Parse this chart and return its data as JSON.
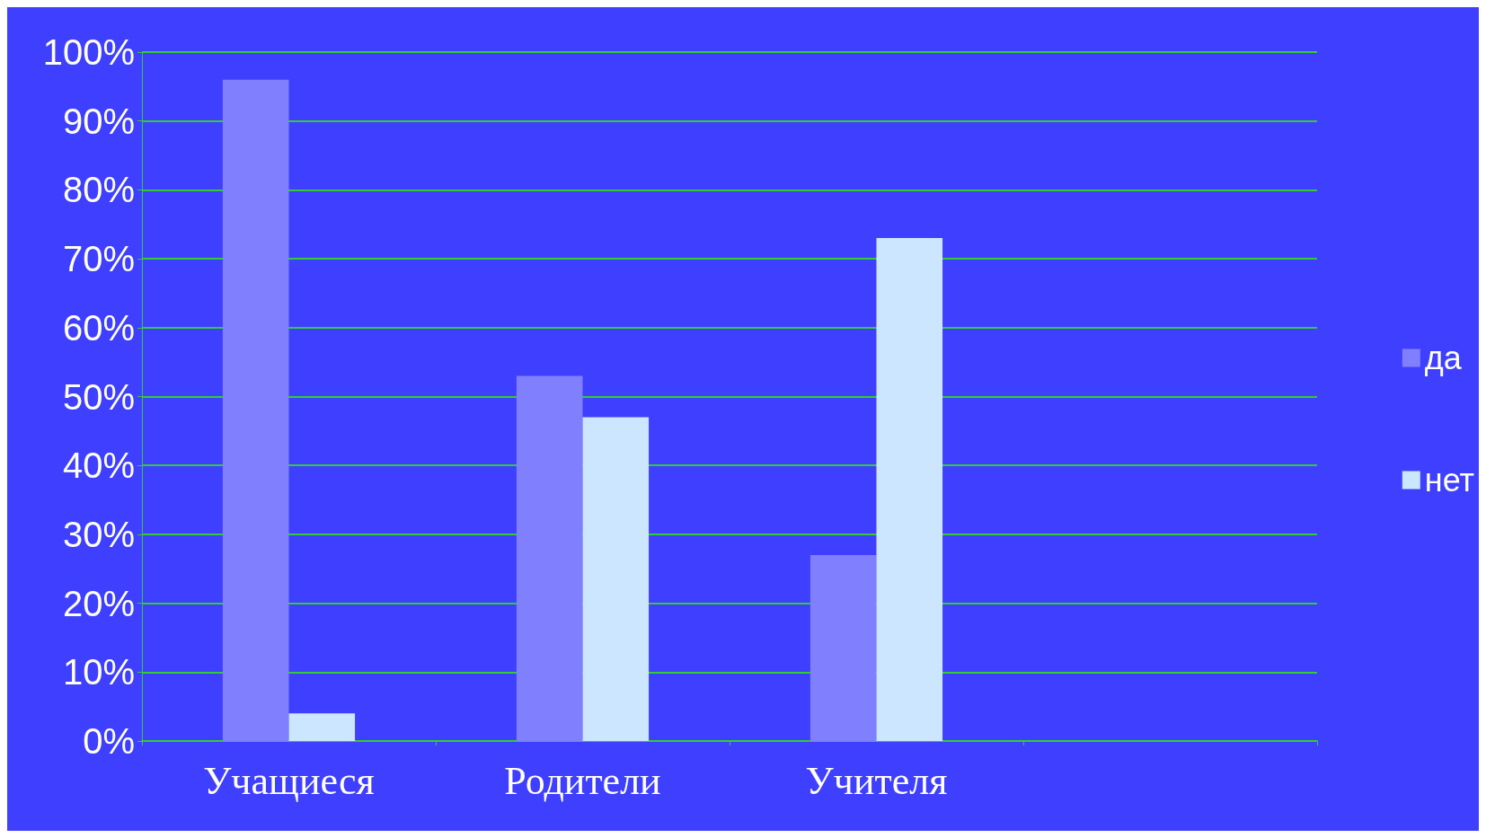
{
  "chart_data": {
    "type": "bar",
    "categories": [
      "Учащиеся",
      "Родители",
      "Учителя",
      null
    ],
    "series": [
      {
        "name": "да",
        "color": "#8080ff",
        "values": [
          96,
          53,
          27,
          null
        ]
      },
      {
        "name": "нет",
        "color": "#cce6ff",
        "values": [
          4,
          47,
          73,
          null
        ]
      }
    ],
    "ylim": [
      0,
      100
    ],
    "yticks": [
      {
        "value": 0,
        "label": "0%"
      },
      {
        "value": 10,
        "label": "10%"
      },
      {
        "value": 20,
        "label": "20%"
      },
      {
        "value": 30,
        "label": "30%"
      },
      {
        "value": 40,
        "label": "40%"
      },
      {
        "value": 50,
        "label": "50%"
      },
      {
        "value": 60,
        "label": "60%"
      },
      {
        "value": 70,
        "label": "70%"
      },
      {
        "value": 80,
        "label": "80%"
      },
      {
        "value": 90,
        "label": "90%"
      },
      {
        "value": 100,
        "label": "100%"
      }
    ],
    "grid": "y",
    "legend": "right"
  }
}
